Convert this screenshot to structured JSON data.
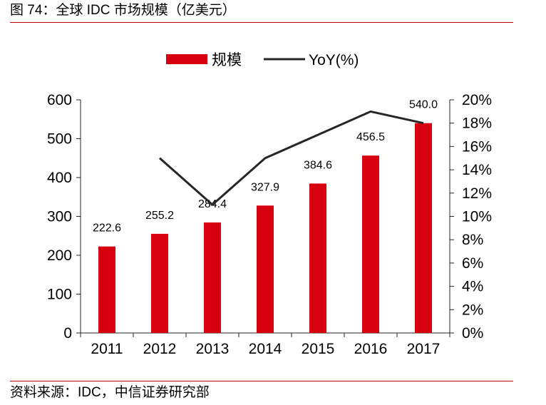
{
  "header": {
    "title": "图 74：全球 IDC 市场规模（亿美元）"
  },
  "footer": {
    "source": "资料来源：IDC，中信证券研究部"
  },
  "chart_data": {
    "type": "bar",
    "categories": [
      "2011",
      "2012",
      "2013",
      "2014",
      "2015",
      "2016",
      "2017"
    ],
    "series": [
      {
        "name": "规模",
        "type": "bar",
        "axis": "left",
        "values": [
          222.6,
          255.2,
          284.4,
          327.9,
          384.6,
          456.5,
          540.0
        ],
        "labels": [
          "222.6",
          "255.2",
          "284.4",
          "327.9",
          "384.6",
          "456.5",
          "540.0"
        ]
      },
      {
        "name": "YoY(%)",
        "type": "line",
        "axis": "right",
        "values": [
          null,
          15,
          11,
          15,
          17,
          19,
          18
        ]
      }
    ],
    "y_left": {
      "min": 0,
      "max": 600,
      "step": 100,
      "ticks": [
        "0",
        "100",
        "200",
        "300",
        "400",
        "500",
        "600"
      ]
    },
    "y_right": {
      "min": 0,
      "max": 20,
      "step": 2,
      "ticks": [
        "0%",
        "2%",
        "4%",
        "6%",
        "8%",
        "10%",
        "12%",
        "14%",
        "16%",
        "18%",
        "20%"
      ]
    },
    "legend_position": "top-center",
    "grid": false,
    "colors": {
      "bar": "#d7000f",
      "line": "#262626",
      "rule": "#c00000"
    }
  }
}
